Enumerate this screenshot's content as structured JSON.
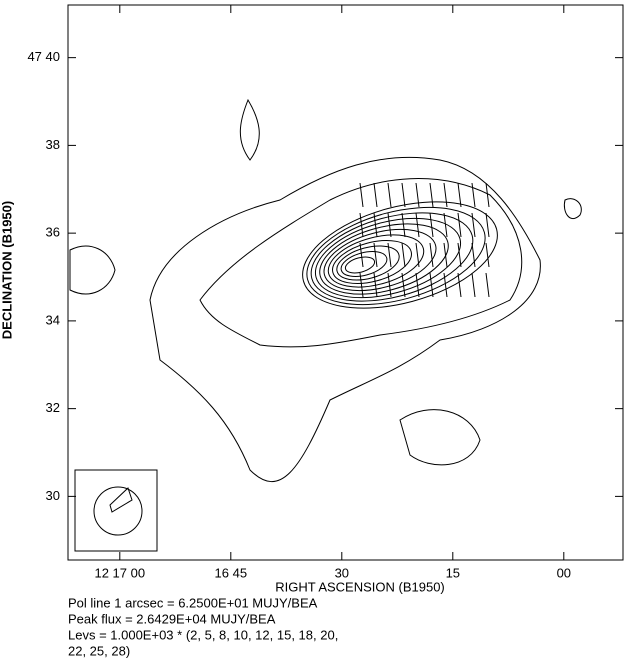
{
  "chart_data": {
    "type": "contour",
    "xlabel": "RIGHT ASCENSION (B1950)",
    "ylabel": "DECLINATION (B1950)",
    "xlim": [
      44227,
      44152
    ],
    "ylim": [
      28.55,
      41.2
    ],
    "xticks": [
      {
        "value": 44220,
        "label": "12 17 00"
      },
      {
        "value": 44205,
        "label": "16 45"
      },
      {
        "value": 44190,
        "label": "30"
      },
      {
        "value": 44175,
        "label": "15"
      },
      {
        "value": 44160,
        "label": "00"
      }
    ],
    "yticks": [
      {
        "value": 40,
        "label": "47 40"
      },
      38,
      36,
      34,
      32,
      30
    ],
    "notes": [
      "Pol line 1 arcsec =  6.2500E+01 MUJY/BEA",
      "Peak flux =  2.6429E+04 MUJY/BEA",
      "Levs = 1.000E+03 * (2, 5, 8, 10, 12, 15, 18, 20,",
      "22, 25, 28)"
    ]
  }
}
